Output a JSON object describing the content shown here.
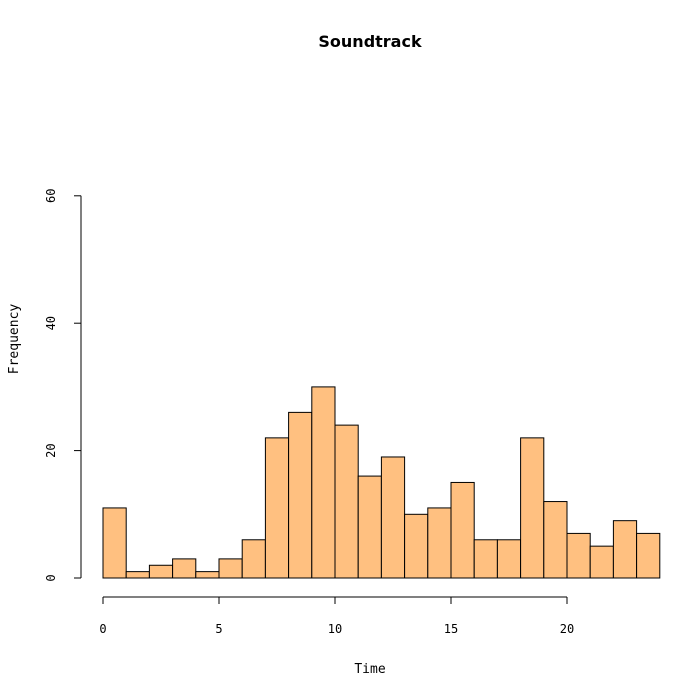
{
  "chart_data": {
    "type": "bar",
    "title": "Soundtrack",
    "xlabel": "Time",
    "ylabel": "Frequency",
    "bin_width": 1,
    "x": [
      0,
      1,
      2,
      3,
      4,
      5,
      6,
      7,
      8,
      9,
      10,
      11,
      12,
      13,
      14,
      15,
      16,
      17,
      18,
      19,
      20,
      21,
      22,
      23
    ],
    "values": [
      11,
      1,
      2,
      3,
      1,
      3,
      6,
      22,
      26,
      30,
      24,
      16,
      19,
      10,
      11,
      15,
      6,
      6,
      22,
      12,
      7,
      5,
      9,
      7
    ],
    "xlim": [
      0,
      24
    ],
    "ylim": [
      0,
      60
    ],
    "xticks": [
      0,
      5,
      10,
      15,
      20
    ],
    "yticks": [
      0,
      20,
      40,
      60
    ],
    "bar_color": "#FFC080",
    "grid": false,
    "legend": "none"
  }
}
